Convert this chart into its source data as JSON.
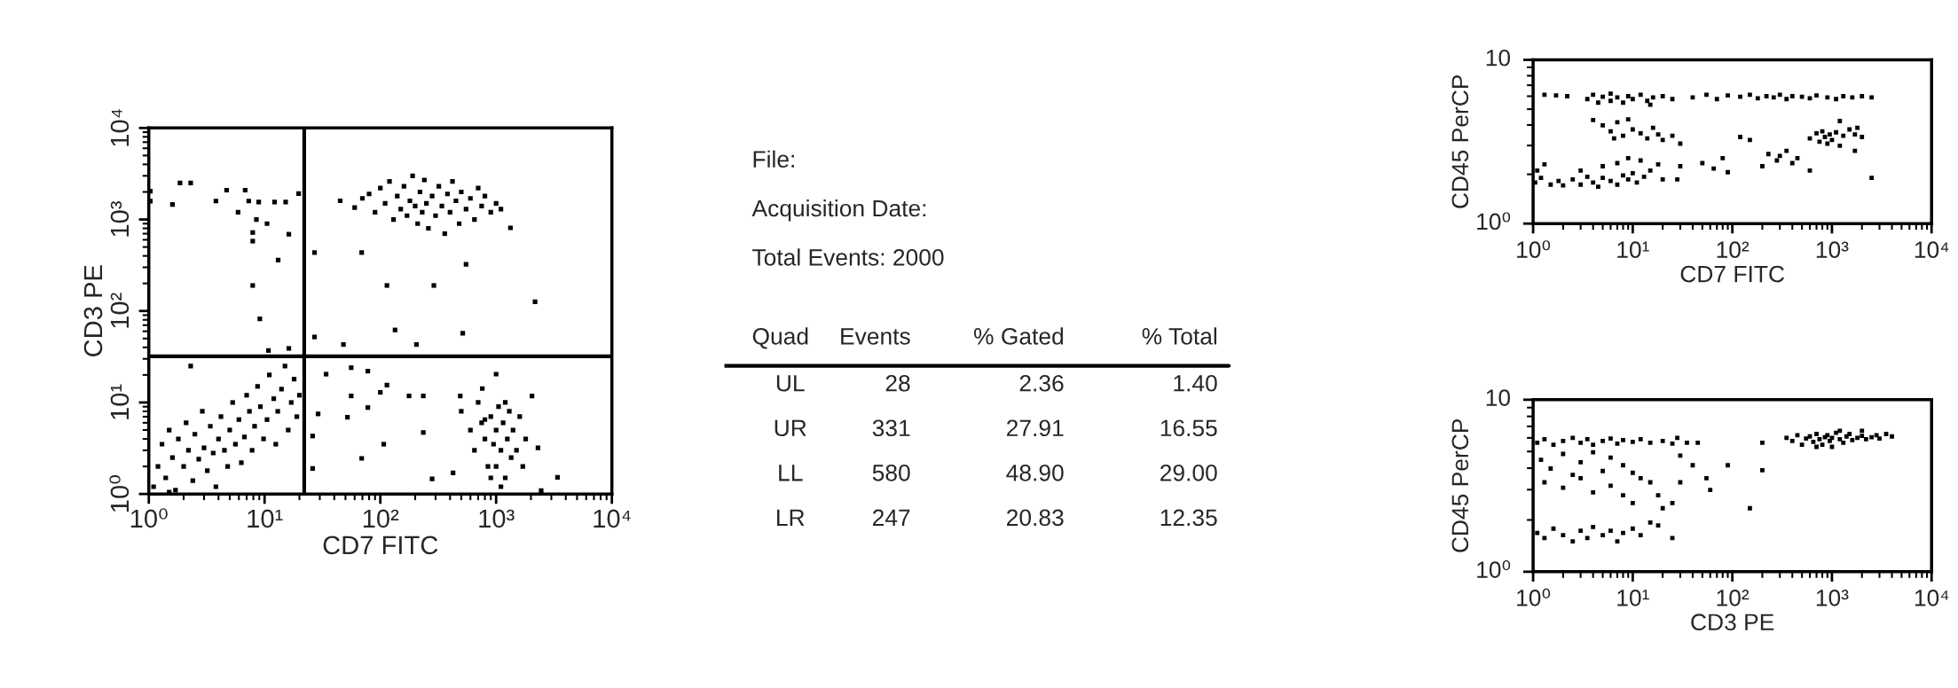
{
  "chart_data": [
    {
      "type": "scatter",
      "xlabel": "CD7 FITC",
      "ylabel": "CD3 PE",
      "log": "xy",
      "marker": "square",
      "color": "#000000",
      "xlim": [
        1,
        10000
      ],
      "ylim": [
        1,
        10000
      ],
      "xticks": [
        {
          "value": 1,
          "label": "10⁰"
        },
        {
          "value": 10,
          "label": "10¹"
        },
        {
          "value": 100,
          "label": "10²"
        },
        {
          "value": 1000,
          "label": "10³"
        },
        {
          "value": 10000,
          "label": "10⁴"
        }
      ],
      "yticks": [
        {
          "value": 1,
          "label": "10⁰"
        },
        {
          "value": 10,
          "label": "10¹"
        },
        {
          "value": 100,
          "label": "10²"
        },
        {
          "value": 1000,
          "label": "10³"
        },
        {
          "value": 10000,
          "label": "10⁴"
        }
      ],
      "ref_lines": [
        {
          "axis": "x",
          "value": 22,
          "color": "#000000"
        },
        {
          "axis": "y",
          "value": 32,
          "color": "#000000"
        }
      ],
      "x": [
        1.03,
        1.03,
        1.86,
        2.3,
        1.6,
        4.7,
        3.8,
        6.8,
        5.9,
        7.3,
        8.9,
        8.5,
        10.5,
        7.9,
        7.9,
        16.2,
        12.2,
        15.2,
        13.1,
        7.9,
        9.1,
        10.8,
        16.2,
        19.7,
        45,
        60,
        70,
        80,
        90,
        100,
        110,
        120,
        130,
        140,
        150,
        160,
        170,
        180,
        190,
        200,
        210,
        220,
        230,
        240,
        250,
        260,
        280,
        300,
        320,
        340,
        360,
        380,
        400,
        420,
        450,
        480,
        500,
        550,
        600,
        650,
        700,
        750,
        800,
        900,
        1000,
        1100,
        1330,
        27,
        69,
        114,
        290,
        2170,
        134,
        515,
        27,
        48,
        205,
        550,
        1.1,
        1.2,
        1.3,
        1.4,
        1.5,
        1.6,
        1.7,
        1.8,
        2.0,
        2.1,
        2.2,
        2.4,
        2.5,
        2.7,
        2.9,
        3.0,
        3.2,
        3.4,
        3.6,
        3.8,
        4.0,
        4.2,
        4.5,
        4.8,
        5.0,
        5.3,
        5.6,
        6.0,
        6.3,
        6.7,
        7.0,
        7.4,
        7.8,
        8.2,
        8.7,
        9.2,
        9.8,
        10.5,
        11,
        12,
        12.5,
        13,
        14,
        15,
        16,
        17,
        18,
        19,
        20,
        2.3,
        1.5,
        34,
        56,
        78,
        114,
        56,
        52,
        78,
        100,
        177,
        235,
        107,
        69,
        235,
        1000,
        760,
        2040,
        490,
        26,
        29,
        26,
        3390,
        2450,
        280,
        425,
        2300,
        500,
        600,
        650,
        700,
        750,
        800,
        850,
        900,
        950,
        1000,
        1000,
        1050,
        1100,
        1150,
        1200,
        1250,
        1300,
        1350,
        1400,
        1500,
        1600,
        1700,
        1800,
        1100,
        900,
        1200,
        800
      ],
      "values": [
        2040,
        1585,
        2510,
        2510,
        1460,
        2090,
        1590,
        2090,
        1200,
        1590,
        1550,
        1000,
        900,
        720,
        580,
        690,
        1550,
        1550,
        360,
        190,
        82,
        37,
        39,
        1920,
        1600,
        1350,
        1700,
        1900,
        1200,
        2200,
        1500,
        2600,
        1000,
        1800,
        1300,
        2300,
        1100,
        1600,
        3000,
        1400,
        900,
        2000,
        1200,
        2700,
        1500,
        800,
        1800,
        1100,
        2300,
        1400,
        700,
        1900,
        1200,
        2600,
        1600,
        900,
        2000,
        1300,
        1700,
        1000,
        2200,
        1400,
        1800,
        1200,
        1500,
        1300,
        810,
        435,
        435,
        190,
        190,
        126,
        62,
        57,
        52,
        43,
        43,
        323,
        1.2,
        2.0,
        3.5,
        1.5,
        5.0,
        2.5,
        1.1,
        4.0,
        2.0,
        6.0,
        3.0,
        1.4,
        4.5,
        2.4,
        8.0,
        3.2,
        1.8,
        5.5,
        2.8,
        1.2,
        4.0,
        7.0,
        3.0,
        2.0,
        5.0,
        10,
        3.5,
        6.5,
        2.2,
        4.2,
        12,
        8.0,
        3.0,
        5.5,
        15,
        9.0,
        4.0,
        6.5,
        20,
        11,
        3.5,
        8,
        14,
        25,
        5,
        10,
        18,
        7,
        12,
        25,
        1.05,
        20.4,
        24,
        22,
        15.5,
        11.8,
        6.9,
        8.8,
        12.9,
        11.8,
        11.8,
        3.5,
        2.45,
        4.7,
        20.4,
        14.2,
        11.8,
        11.8,
        4.3,
        7.5,
        1.9,
        1.52,
        1.09,
        1.46,
        1.7,
        3.2,
        8,
        5,
        3,
        10,
        6,
        4,
        2,
        7,
        3.5,
        5,
        2,
        9,
        3,
        6,
        1.5,
        4,
        8,
        2.5,
        5,
        3,
        7,
        2,
        4,
        1.2,
        1.5,
        10,
        6.5
      ]
    },
    {
      "type": "other",
      "annotations": [
        "File:",
        "Acquisition Date:",
        "Total Events: 2000"
      ],
      "xlabel": "Quad",
      "categories": [
        "UL",
        "UR",
        "LL",
        "LR"
      ],
      "data_labels": true,
      "series": [
        {
          "name": "Events",
          "values": [
            28,
            331,
            580,
            247
          ]
        },
        {
          "name": "% Gated",
          "values": [
            2.36,
            27.91,
            48.9,
            20.83
          ],
          "value_labels": [
            "2.36",
            "27.91",
            "48.90",
            "20.83"
          ]
        },
        {
          "name": "% Total",
          "values": [
            1.4,
            16.55,
            29.0,
            12.35
          ],
          "value_labels": [
            "1.40",
            "16.55",
            "29.00",
            "12.35"
          ]
        }
      ]
    },
    {
      "type": "scatter",
      "xlabel": "CD7 FITC",
      "ylabel": "CD45 PerCP",
      "log": "xy",
      "marker": "square",
      "color": "#000000",
      "xlim": [
        1,
        10000
      ],
      "ylim": [
        1,
        10
      ],
      "xticks": [
        {
          "value": 1,
          "label": "10⁰"
        },
        {
          "value": 10,
          "label": "10¹"
        },
        {
          "value": 100,
          "label": "10²"
        },
        {
          "value": 1000,
          "label": "10³"
        },
        {
          "value": 10000,
          "label": "10⁴"
        }
      ],
      "yticks": [
        {
          "value": 1,
          "label": "10⁰"
        },
        10
      ],
      "x": [
        2.2,
        3.5,
        4,
        4.5,
        5,
        6,
        6,
        7,
        8,
        9,
        10,
        12,
        14,
        16,
        20,
        25,
        40,
        55,
        70,
        90,
        120,
        150,
        180,
        220,
        260,
        300,
        350,
        400,
        500,
        600,
        700,
        900,
        1100,
        1300,
        1600,
        2000,
        2500,
        1.3,
        1.7,
        15,
        5,
        6,
        7,
        8,
        10,
        12,
        14,
        16,
        18,
        4,
        9,
        20,
        6.5,
        30,
        25,
        1.05,
        1.2,
        1.5,
        1.8,
        2,
        2.5,
        3,
        3.5,
        4,
        4.5,
        5,
        6,
        7,
        8,
        9,
        10,
        11,
        13,
        15,
        3,
        5,
        7,
        9,
        12,
        1.1,
        1.3,
        20,
        18,
        30,
        28,
        50,
        65,
        80,
        90,
        120,
        150,
        200,
        230,
        280,
        300,
        350,
        400,
        450,
        600,
        2500,
        600,
        700,
        750,
        800,
        850,
        900,
        950,
        1000,
        1100,
        1200,
        1300,
        1500,
        1700,
        1800,
        1200,
        1700,
        2000
      ],
      "values": [
        6.0,
        5.76,
        6.12,
        5.48,
        5.95,
        5.62,
        6.22,
        5.89,
        5.48,
        6.0,
        5.76,
        6.12,
        5.62,
        5.89,
        6.0,
        5.76,
        5.89,
        6.12,
        5.76,
        6.06,
        5.95,
        6.12,
        5.82,
        6.0,
        5.89,
        6.12,
        5.76,
        6.0,
        5.95,
        5.82,
        6.06,
        5.89,
        5.76,
        6.0,
        5.89,
        6.0,
        5.89,
        6.12,
        6.06,
        5.32,
        3.98,
        3.66,
        4.16,
        3.44,
        3.76,
        3.56,
        3.31,
        3.85,
        3.5,
        4.29,
        4.33,
        3.24,
        3.31,
        3.08,
        3.44,
        1.78,
        1.9,
        1.73,
        1.82,
        1.71,
        1.86,
        1.73,
        1.93,
        1.78,
        1.68,
        1.9,
        1.82,
        1.73,
        1.97,
        1.86,
        2.03,
        1.78,
        1.93,
        2.11,
        2.11,
        2.24,
        2.34,
        2.51,
        2.43,
        2.11,
        2.3,
        1.86,
        2.3,
        2.24,
        1.86,
        2.34,
        2.17,
        2.51,
        2.06,
        3.38,
        3.24,
        2.24,
        2.66,
        2.43,
        2.59,
        2.78,
        2.34,
        2.51,
        2.11,
        1.9,
        3.31,
        3.56,
        3.16,
        3.66,
        3.38,
        3.08,
        3.5,
        3.24,
        3.61,
        2.99,
        3.44,
        3.76,
        3.5,
        3.85,
        4.23,
        2.78,
        3.38
      ]
    },
    {
      "type": "scatter",
      "xlabel": "CD3 PE",
      "ylabel": "CD45 PerCP",
      "log": "xy",
      "marker": "square",
      "color": "#000000",
      "xlim": [
        1,
        10000
      ],
      "ylim": [
        1,
        10
      ],
      "xticks": [
        {
          "value": 1,
          "label": "10⁰"
        },
        {
          "value": 10,
          "label": "10¹"
        },
        {
          "value": 100,
          "label": "10²"
        },
        {
          "value": 1000,
          "label": "10³"
        },
        {
          "value": 10000,
          "label": "10⁴"
        }
      ],
      "yticks": [
        {
          "value": 1,
          "label": "10⁰"
        },
        10
      ],
      "x": [
        350,
        400,
        450,
        500,
        550,
        600,
        650,
        700,
        750,
        800,
        850,
        900,
        950,
        1000,
        1100,
        1200,
        1300,
        1400,
        1500,
        1600,
        1800,
        2000,
        2200,
        2500,
        2800,
        3000,
        3500,
        4000,
        700,
        1000,
        1200,
        2000,
        1.1,
        1.3,
        1.6,
        2,
        2.5,
        3,
        3.5,
        4,
        5,
        6,
        7,
        8,
        10,
        12,
        15,
        20,
        25,
        35,
        45,
        28,
        1.2,
        1.5,
        2,
        2.5,
        3,
        4,
        5,
        6,
        8,
        10,
        12,
        15,
        1.3,
        2,
        3,
        4,
        6,
        8,
        10,
        18,
        20,
        25,
        30,
        30,
        40,
        55,
        60,
        90,
        200,
        200,
        150,
        1.1,
        1.3,
        1.6,
        2,
        2.5,
        3,
        3.5,
        4,
        5,
        6,
        7,
        8,
        10,
        12,
        15,
        18,
        25
      ],
      "values": [
        6.0,
        5.76,
        6.22,
        5.48,
        5.95,
        6.12,
        5.69,
        6.32,
        5.89,
        5.48,
        6.06,
        6.22,
        5.76,
        6.0,
        6.42,
        5.89,
        5.62,
        6.12,
        6.32,
        5.82,
        6.0,
        6.17,
        5.89,
        6.06,
        6.22,
        5.95,
        6.32,
        6.12,
        5.32,
        5.32,
        6.6,
        6.6,
        5.62,
        5.89,
        5.48,
        5.76,
        6.0,
        5.62,
        5.89,
        5.48,
        5.76,
        5.95,
        5.55,
        5.82,
        5.69,
        5.89,
        5.62,
        5.76,
        5.55,
        5.62,
        5.62,
        6.0,
        4.47,
        3.98,
        4.84,
        3.66,
        4.33,
        4.95,
        3.85,
        4.61,
        4.16,
        3.76,
        3.5,
        3.31,
        3.31,
        3.08,
        3.5,
        2.89,
        3.16,
        2.78,
        2.51,
        2.78,
        2.34,
        2.51,
        3.31,
        4.73,
        4.16,
        3.5,
        2.99,
        4.16,
        3.89,
        5.62,
        2.34,
        1.68,
        1.57,
        1.78,
        1.63,
        1.5,
        1.73,
        1.57,
        1.82,
        1.63,
        1.73,
        1.5,
        1.68,
        1.78,
        1.63,
        1.93,
        1.86,
        1.57
      ]
    }
  ]
}
